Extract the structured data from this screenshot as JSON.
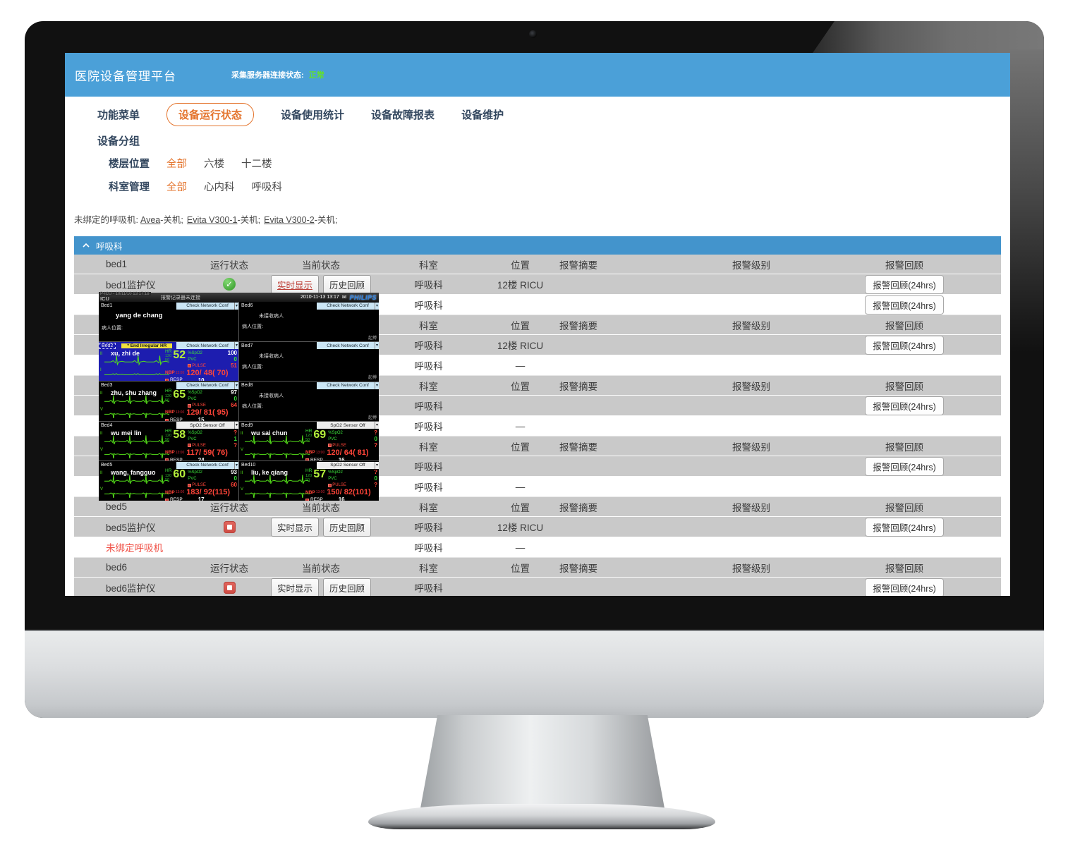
{
  "app": {
    "title": "医院设备管理平台",
    "server_status_label": "采集服务器连接状态:",
    "server_status_value": "正常",
    "colors": {
      "header_blue": "#4BA0D8",
      "section_blue": "#4394CC",
      "accent_orange": "#E4752E",
      "status_green": "#62E02E",
      "running_green": "#47A93B",
      "stopped_red": "#CE4A42",
      "alarm_text_red": "#F05248",
      "philips_blue": "#2F83E0"
    }
  },
  "nav": {
    "items": [
      {
        "label": "功能菜单",
        "active": false
      },
      {
        "label": "设备运行状态",
        "active": true
      },
      {
        "label": "设备使用统计",
        "active": false
      },
      {
        "label": "设备故障报表",
        "active": false
      },
      {
        "label": "设备维护",
        "active": false
      }
    ]
  },
  "grouping": {
    "title": "设备分组",
    "filters": [
      {
        "label": "楼层位置",
        "options": [
          {
            "label": "全部",
            "selected": true
          },
          {
            "label": "六楼",
            "selected": false
          },
          {
            "label": "十二楼",
            "selected": false
          }
        ]
      },
      {
        "label": "科室管理",
        "options": [
          {
            "label": "全部",
            "selected": true
          },
          {
            "label": "心内科",
            "selected": false
          },
          {
            "label": "呼吸科",
            "selected": false
          }
        ]
      }
    ]
  },
  "unbound": {
    "prefix": "未绑定的呼吸机:",
    "items": [
      {
        "name": "Avea",
        "suffix": "-关机;"
      },
      {
        "name": "Evita V300-1",
        "suffix": "-关机;"
      },
      {
        "name": "Evita V300-2",
        "suffix": "-关机;"
      }
    ]
  },
  "section": {
    "title": "呼吸科"
  },
  "table": {
    "groups": [
      {
        "header": {
          "name": "bed1",
          "run": "运行状态",
          "cur": "当前状态",
          "dept": "科室",
          "loc": "位置",
          "sum": "报警摘要",
          "lvl": "报警级别",
          "rev": "报警回顾"
        },
        "rows": [
          {
            "shade": "gray",
            "label": "bed1监护仪",
            "status": "ok",
            "live": "实时显示",
            "live_active": true,
            "hist": "历史回顾",
            "dept": "呼吸科",
            "loc": "12楼 RICU",
            "review": "报警回顾(24hrs)",
            "red": false
          },
          {
            "shade": "white",
            "label": "",
            "status": "",
            "live": "",
            "live_active": false,
            "hist": "",
            "dept": "呼吸科",
            "loc": "",
            "review": "报警回顾(24hrs)",
            "red": false
          }
        ]
      },
      {
        "header": {
          "name": "",
          "run": "",
          "cur": "",
          "dept": "科室",
          "loc": "位置",
          "sum": "报警摘要",
          "lvl": "报警级别",
          "rev": "报警回顾"
        },
        "rows": [
          {
            "shade": "gray",
            "label": "",
            "status": "",
            "live": "",
            "live_active": false,
            "hist": "",
            "dept": "呼吸科",
            "loc": "12楼 RICU",
            "review": "报警回顾(24hrs)",
            "red": false
          },
          {
            "shade": "white",
            "label": "",
            "status": "",
            "live": "",
            "live_active": false,
            "hist": "",
            "dept": "呼吸科",
            "loc": "—",
            "review": "",
            "red": false
          }
        ]
      },
      {
        "header": {
          "name": "",
          "run": "",
          "cur": "",
          "dept": "科室",
          "loc": "位置",
          "sum": "报警摘要",
          "lvl": "报警级别",
          "rev": "报警回顾"
        },
        "rows": [
          {
            "shade": "gray",
            "label": "",
            "status": "",
            "live": "",
            "live_active": false,
            "hist": "",
            "dept": "呼吸科",
            "loc": "",
            "review": "报警回顾(24hrs)",
            "red": false
          },
          {
            "shade": "white",
            "label": "",
            "status": "",
            "live": "",
            "live_active": false,
            "hist": "",
            "dept": "呼吸科",
            "loc": "—",
            "review": "",
            "red": false
          }
        ]
      },
      {
        "header": {
          "name": "",
          "run": "",
          "cur": "",
          "dept": "科室",
          "loc": "位置",
          "sum": "报警摘要",
          "lvl": "报警级别",
          "rev": "报警回顾"
        },
        "rows": [
          {
            "shade": "gray",
            "label": "",
            "status": "",
            "live": "",
            "live_active": false,
            "hist": "",
            "dept": "呼吸科",
            "loc": "",
            "review": "报警回顾(24hrs)",
            "red": false
          },
          {
            "shade": "white",
            "label": "",
            "status": "",
            "live": "",
            "live_active": false,
            "hist": "",
            "dept": "呼吸科",
            "loc": "—",
            "review": "",
            "red": false
          }
        ]
      },
      {
        "header": {
          "name": "bed5",
          "run": "运行状态",
          "cur": "当前状态",
          "dept": "科室",
          "loc": "位置",
          "sum": "报警摘要",
          "lvl": "报警级别",
          "rev": "报警回顾"
        },
        "rows": [
          {
            "shade": "gray",
            "label": "bed5监护仪",
            "status": "stopped",
            "live": "实时显示",
            "live_active": false,
            "hist": "历史回顾",
            "dept": "呼吸科",
            "loc": "12楼 RICU",
            "review": "报警回顾(24hrs)",
            "red": false
          },
          {
            "shade": "white",
            "label": "未绑定呼吸机",
            "status": "",
            "live": "",
            "live_active": false,
            "hist": "",
            "dept": "呼吸科",
            "loc": "—",
            "review": "",
            "red": true
          }
        ]
      },
      {
        "header": {
          "name": "bed6",
          "run": "运行状态",
          "cur": "当前状态",
          "dept": "科室",
          "loc": "位置",
          "sum": "报警摘要",
          "lvl": "报警级别",
          "rev": "报警回顾"
        },
        "rows": [
          {
            "shade": "gray",
            "label": "bed6监护仪",
            "status": "stopped",
            "live": "实时显示",
            "live_active": false,
            "hist": "历史回顾",
            "dept": "呼吸科",
            "loc": "",
            "review": "报警回顾(24hrs)",
            "red": false
          }
        ]
      }
    ]
  },
  "popup": {
    "titlebar": {
      "overlay_note": "P-ICU - 10/11/10 13:17:18",
      "unit": "ICU",
      "message": "报警记录器未连接",
      "datetime": "2010-11-13 13:17",
      "mail_icon": "✉",
      "brand": "PHILIPS"
    },
    "labels": {
      "hr": "HR",
      "spo2": "%SpO2",
      "pvc": "PVC",
      "pulse": "PULSE",
      "nbp": "NBP",
      "resp": "RESP",
      "hr_lim_hi": "120",
      "hr_lim_lo": "50",
      "nbp_time": "13:00"
    },
    "beds": [
      {
        "id": "Bed1",
        "type": "idle",
        "name": "yang de chang",
        "loc_label": "病人位置:",
        "dropdown": "Check Network Conf",
        "dropdown_white": false,
        "selected": false
      },
      {
        "id": "Bed2",
        "type": "vitals",
        "selected": true,
        "alarm": "* End Irregular HR",
        "dropdown": "Check Network Conf",
        "dropdown_white": false,
        "name": "xu, zhi de",
        "leads": [
          "II",
          "I"
        ],
        "hr": "52",
        "spo2": "100",
        "pvc": "0",
        "pulse": "51",
        "nbp": "120/ 48( 70)",
        "resp": "10"
      },
      {
        "id": "Bed3",
        "type": "vitals",
        "selected": false,
        "dropdown": "Check Network Conf",
        "dropdown_white": false,
        "name": "zhu, shu zhang",
        "leads": [
          "II",
          "V"
        ],
        "hr": "65",
        "spo2": "97",
        "pvc": "0",
        "pulse": "64",
        "nbp": "129/ 81( 95)",
        "resp": "15"
      },
      {
        "id": "Bed4",
        "type": "vitals",
        "selected": false,
        "dropdown": "SpO2 Sensor Off",
        "dropdown_white": true,
        "name": "wu mei lin",
        "leads": [
          "II",
          "V"
        ],
        "hr": "58",
        "spo2": "?",
        "pvc": "1",
        "pulse": "?",
        "nbp": "117/ 59( 76)",
        "resp": "24"
      },
      {
        "id": "Bed5",
        "type": "vitals",
        "selected": false,
        "dropdown": "Check Network Conf",
        "dropdown_white": false,
        "name": "wang, fangguo",
        "leads": [
          "II",
          "V"
        ],
        "hr": "60",
        "spo2": "93",
        "pvc": "0",
        "pulse": "60",
        "nbp": "183/ 92(115)",
        "resp": "17"
      },
      {
        "id": "Bed6",
        "type": "empty",
        "text": "未接收病人",
        "loc_label": "病人位置:",
        "dropdown": "Check Network Conf",
        "dropdown_white": false,
        "corner": "起搏",
        "selected": false
      },
      {
        "id": "Bed7",
        "type": "empty",
        "text": "未接收病人",
        "loc_label": "病人位置:",
        "dropdown": "Check Network Conf",
        "dropdown_white": false,
        "corner": "起搏",
        "selected": false
      },
      {
        "id": "Bed8",
        "type": "empty",
        "text": "未接收病人",
        "loc_label": "病人位置:",
        "dropdown": "Check Network Conf",
        "dropdown_white": false,
        "corner": "起搏",
        "selected": false
      },
      {
        "id": "Bed9",
        "type": "vitals",
        "selected": false,
        "dropdown": "SpO2 Sensor Off",
        "dropdown_white": true,
        "name": "wu sai chun",
        "leads": [
          "II",
          "V"
        ],
        "hr": "69",
        "spo2": "?",
        "pvc": "0",
        "pulse": "?",
        "nbp": "120/ 64( 81)",
        "resp": "16"
      },
      {
        "id": "Bed10",
        "type": "vitals",
        "selected": false,
        "dropdown": "SpO2 Sensor Off",
        "dropdown_white": true,
        "name": "liu, ke qiang",
        "leads": [
          "II",
          "V"
        ],
        "hr": "57",
        "spo2": "?",
        "pvc": "0",
        "pulse": "?",
        "nbp": "150/ 82(101)",
        "resp": "16"
      }
    ]
  }
}
